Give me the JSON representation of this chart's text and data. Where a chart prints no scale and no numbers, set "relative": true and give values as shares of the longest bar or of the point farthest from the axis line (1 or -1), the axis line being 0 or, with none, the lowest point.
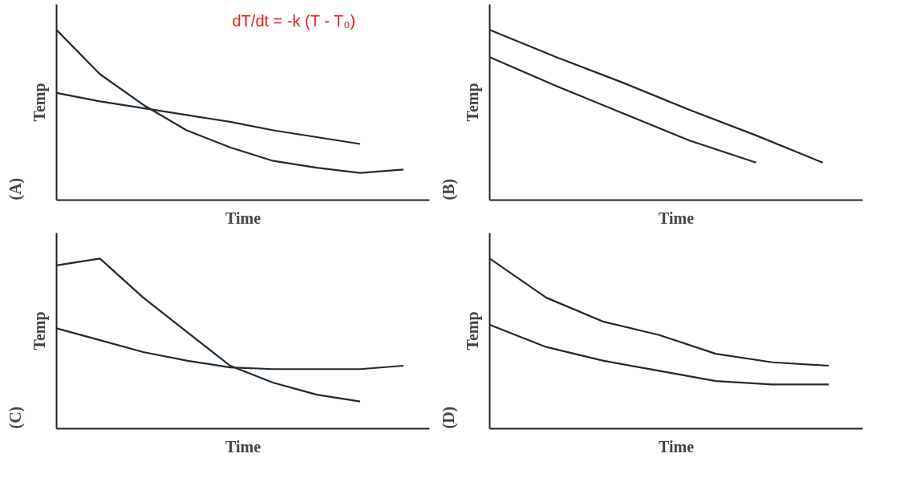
{
  "chart_data": [
    {
      "type": "line",
      "title": "(A)",
      "xlabel": "Time",
      "ylabel": "Temp",
      "relative": true,
      "tick_labels": false,
      "grid": false,
      "marker": "none",
      "line_style": "solid",
      "annotations": [
        "dT/dt = -k (T - T₀)"
      ],
      "categories": [
        null,
        null,
        null,
        null,
        null,
        null,
        null,
        null,
        null
      ],
      "series": [
        {
          "color": "#1f2a33",
          "values": [
            1,
            0.74,
            0.56,
            0.41,
            0.31,
            0.23,
            0.19,
            0.16,
            0.18
          ]
        },
        {
          "color": "#1f2a33",
          "values": [
            0.63,
            0.58,
            0.54,
            0.5,
            0.46,
            0.41,
            0.37,
            0.33,
            null
          ]
        }
      ]
    },
    {
      "type": "line",
      "title": "(B)",
      "xlabel": "Time",
      "ylabel": "Temp",
      "relative": true,
      "tick_labels": false,
      "grid": false,
      "marker": "none",
      "line_style": "solid",
      "categories": [
        null,
        null,
        null,
        null,
        null,
        null
      ],
      "series": [
        {
          "color": "#1f2a33",
          "values": [
            1,
            0.84,
            0.69,
            0.53,
            0.38,
            0.22
          ]
        },
        {
          "color": "#1f2a33",
          "values": [
            0.84,
            0.67,
            0.51,
            0.35,
            0.22,
            null
          ]
        }
      ]
    },
    {
      "type": "line",
      "title": "(C)",
      "xlabel": "Time",
      "ylabel": "Temp",
      "relative": true,
      "tick_labels": false,
      "grid": false,
      "marker": "none",
      "line_style": "solid",
      "categories": [
        null,
        null,
        null,
        null,
        null,
        null,
        null,
        null,
        null
      ],
      "series": [
        {
          "color": "#1f2a33",
          "values": [
            0.96,
            1,
            0.77,
            0.57,
            0.37,
            0.27,
            0.2,
            0.16,
            null
          ]
        },
        {
          "color": "#1f2a33",
          "values": [
            0.59,
            0.52,
            0.45,
            0.4,
            0.36,
            0.35,
            0.35,
            0.35,
            0.37
          ]
        }
      ]
    },
    {
      "type": "line",
      "title": "(D)",
      "xlabel": "Time",
      "ylabel": "Temp",
      "relative": true,
      "tick_labels": false,
      "grid": false,
      "marker": "none",
      "line_style": "solid",
      "categories": [
        null,
        null,
        null,
        null,
        null,
        null,
        null
      ],
      "series": [
        {
          "color": "#1f2a33",
          "values": [
            1,
            0.77,
            0.63,
            0.55,
            0.44,
            0.39,
            0.37
          ]
        },
        {
          "color": "#1f2a33",
          "values": [
            0.61,
            0.48,
            0.4,
            0.34,
            0.28,
            0.26,
            0.26
          ]
        }
      ]
    }
  ]
}
